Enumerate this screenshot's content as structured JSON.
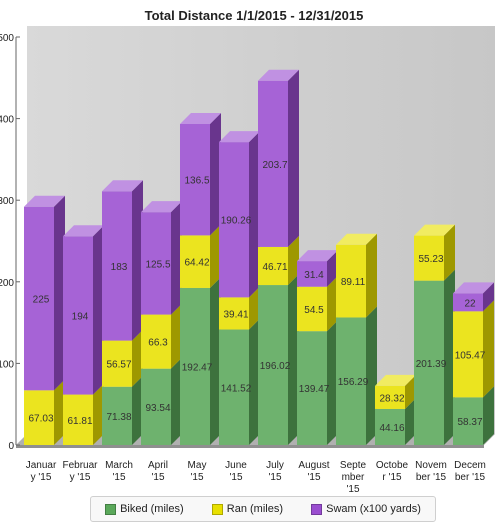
{
  "chart_data": {
    "type": "bar",
    "stacked": true,
    "title": "Total Distance 1/1/2015 - 12/31/2015",
    "ylim": [
      0,
      500
    ],
    "yticks": [
      0,
      100,
      200,
      300,
      400,
      500
    ],
    "categories": [
      [
        "Januar",
        "y '15"
      ],
      [
        "Februar",
        "y '15"
      ],
      [
        "March",
        "'15"
      ],
      [
        "April",
        "'15"
      ],
      [
        "May",
        "'15"
      ],
      [
        "June",
        "'15"
      ],
      [
        "July",
        "'15"
      ],
      [
        "August",
        "'15"
      ],
      [
        "Septe",
        "mber",
        "'15"
      ],
      [
        "Octobe",
        "r '15"
      ],
      [
        "Novem",
        "ber '15"
      ],
      [
        "Decem",
        "ber '15"
      ]
    ],
    "series": [
      {
        "name": "Biked (miles)",
        "color": "#5aa85a",
        "values": [
          null,
          null,
          71.38,
          93.54,
          192.47,
          141.52,
          196.02,
          139.47,
          156.29,
          44.16,
          201.39,
          58.37
        ],
        "labels": [
          "",
          "",
          "71.38",
          "93.54",
          "192.47",
          "141.52",
          "196.02",
          "139.47",
          "156.29",
          "44.16",
          "201.39",
          "58.37"
        ]
      },
      {
        "name": "Ran (miles)",
        "color": "#e8e000",
        "values": [
          67.03,
          61.81,
          56.57,
          66.3,
          64.42,
          39.41,
          46.71,
          54.5,
          89.11,
          28.32,
          55.23,
          105.47
        ],
        "labels": [
          "67.03",
          "61.81",
          "56.57",
          "66.3",
          "64.42",
          "39.41",
          "46.71",
          "54.5",
          "89.11",
          "28.32",
          "55.23",
          "105.47"
        ]
      },
      {
        "name": "Swam (x100 yards)",
        "color": "#9a4ed0",
        "values": [
          225,
          194,
          183,
          125.5,
          136.5,
          190.26,
          203.7,
          31.4,
          null,
          null,
          null,
          22
        ],
        "labels": [
          "225",
          "194",
          "183",
          "125.5",
          "136.5",
          "190.26",
          "203.7",
          "31.4",
          "",
          "",
          "",
          "22"
        ]
      }
    ],
    "legend": "bottom",
    "grid": false
  }
}
